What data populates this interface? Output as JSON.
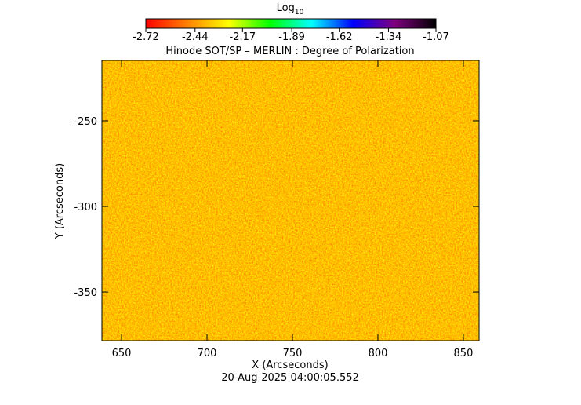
{
  "chart_data": {
    "type": "image",
    "title": "Hinode SOT/SP – MERLIN : Degree of Polarization",
    "x_label": "X (Arcseconds)",
    "y_label": "Y (Arcseconds)",
    "footer": "20-Aug-2025 04:00:05.552",
    "colorbar_label": "Log",
    "colorbar_label_sub": "10",
    "colormap": [
      "#ff0000",
      "#ff8000",
      "#ffff00",
      "#00ff00",
      "#00ffff",
      "#0000ff",
      "#800080",
      "#000000"
    ],
    "clim": [
      -2.72,
      -1.07
    ],
    "cticks": [
      -2.72,
      -2.44,
      -2.17,
      -1.89,
      -1.62,
      -1.34,
      -1.07
    ],
    "xlim": [
      638.5,
      859.2
    ],
    "xticks": [
      650,
      700,
      750,
      800,
      850
    ],
    "ylim": [
      -378.4,
      -214.7
    ],
    "yticks": [
      -350,
      -300,
      -250
    ]
  }
}
